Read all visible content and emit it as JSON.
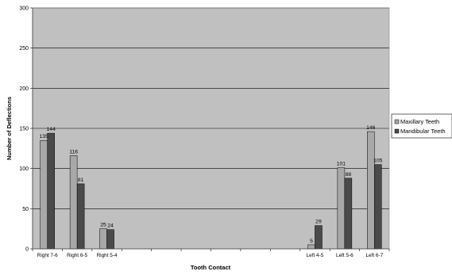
{
  "chart_data": {
    "type": "bar",
    "title": "",
    "xlabel": "Tooth Contact",
    "ylabel": "Number of Deflections",
    "ylim": [
      0,
      300
    ],
    "yticks": [
      0,
      50,
      100,
      150,
      200,
      250,
      300
    ],
    "grid": true,
    "legend_position": "right",
    "categories": [
      "Right 7-6",
      "Right 6-5",
      "Right 5-4",
      "",
      "",
      "",
      "",
      "",
      "",
      "Left 4-5",
      "Left 5-6",
      "Left 6-7"
    ],
    "series": [
      {
        "name": "Maxillary Teeth",
        "color": "#a8a8a8",
        "values": [
          135,
          116,
          25,
          null,
          null,
          null,
          null,
          null,
          null,
          5,
          101,
          146
        ]
      },
      {
        "name": "Mandibular Teeth",
        "color": "#4a4a4a",
        "values": [
          144,
          81,
          24,
          null,
          null,
          null,
          null,
          null,
          null,
          29,
          88,
          105
        ]
      }
    ],
    "colors": {
      "plot_background": "#c0c0c0",
      "gridline": "#000000",
      "bar_outline": "#000000"
    }
  }
}
